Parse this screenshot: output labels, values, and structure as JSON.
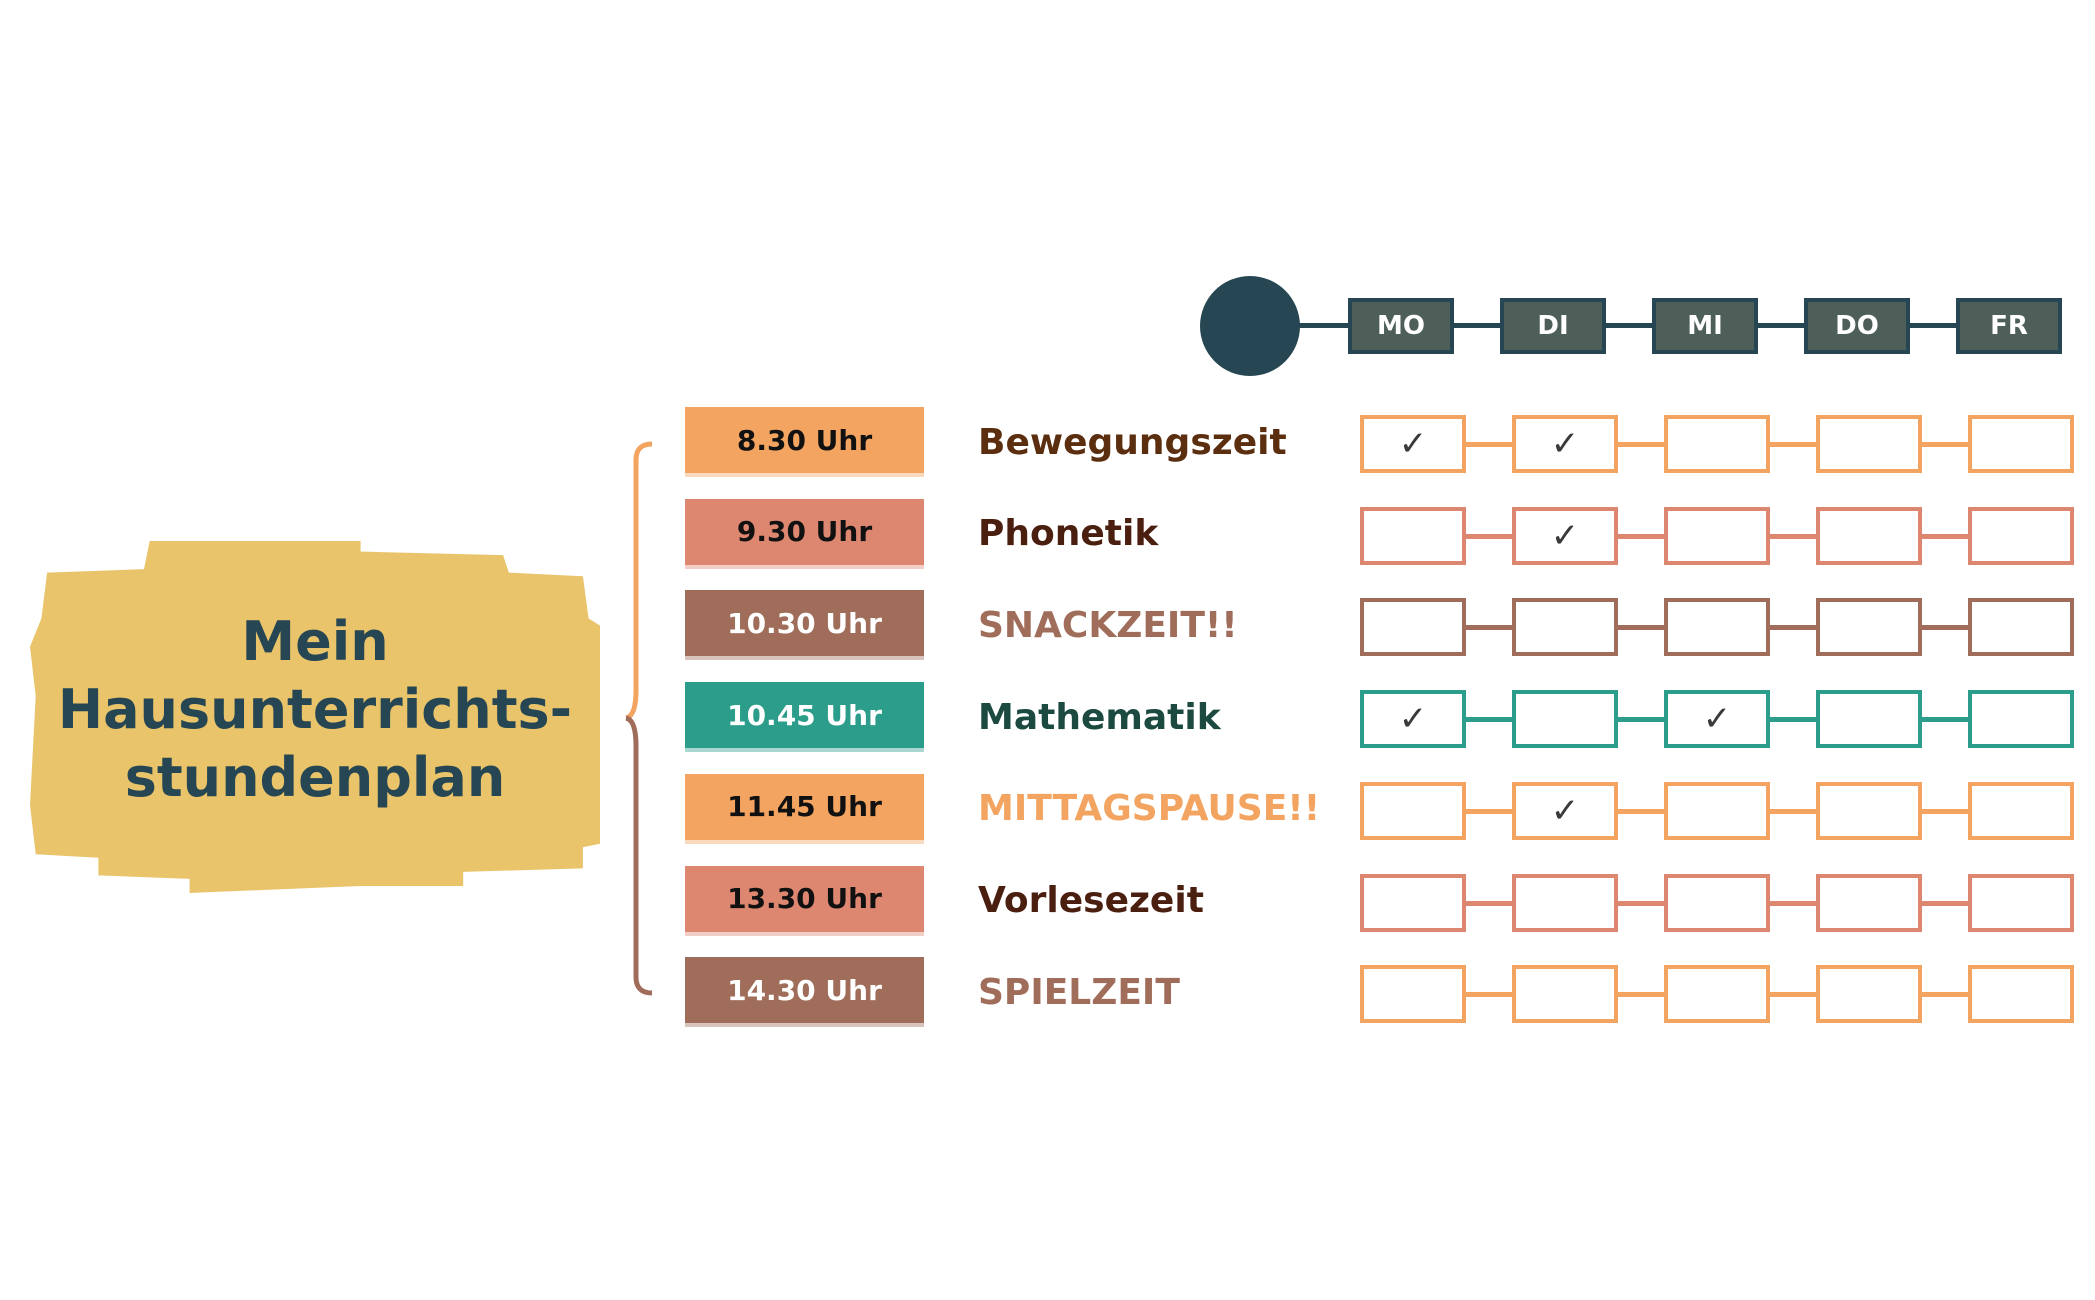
{
  "title": "Mein Hausunterrichts-stundenplan",
  "title_lines": [
    "Mein",
    "Hausunterrichts-",
    "stundenplan"
  ],
  "days": [
    "MO",
    "DI",
    "MI",
    "DO",
    "FR"
  ],
  "colors": {
    "orange": "#f2a460",
    "salmon": "#dd8670",
    "brown": "#a06d5a",
    "teal": "#2b9d8a",
    "navy": "#264653",
    "yellow": "#e9c46a"
  },
  "rows": [
    {
      "time": "8.30 Uhr",
      "subject": "Bewegungszeit",
      "box_color": "#f2a460",
      "time_text": "#111111",
      "subject_color": "#5a2e0e",
      "check_color": "#f2a460",
      "checks": [
        true,
        true,
        false,
        false,
        false
      ]
    },
    {
      "time": "9.30 Uhr",
      "subject": "Phonetik",
      "box_color": "#dd8670",
      "time_text": "#111111",
      "subject_color": "#4a1f10",
      "check_color": "#dd8670",
      "checks": [
        false,
        true,
        false,
        false,
        false
      ]
    },
    {
      "time": "10.30 Uhr",
      "subject": "SNACKZEIT!!",
      "box_color": "#a06d5a",
      "time_text": "#ffffff",
      "subject_color": "#a06d5a",
      "check_color": "#a06d5a",
      "checks": [
        false,
        false,
        false,
        false,
        false
      ]
    },
    {
      "time": "10.45 Uhr",
      "subject": "Mathematik",
      "box_color": "#2b9d8a",
      "time_text": "#ffffff",
      "subject_color": "#1d4a40",
      "check_color": "#2b9d8a",
      "checks": [
        true,
        false,
        true,
        false,
        false
      ]
    },
    {
      "time": "11.45 Uhr",
      "subject": "MITTAGSPAUSE!!",
      "box_color": "#f2a460",
      "time_text": "#111111",
      "subject_color": "#f2a460",
      "check_color": "#f2a460",
      "checks": [
        false,
        true,
        false,
        false,
        false
      ]
    },
    {
      "time": "13.30 Uhr",
      "subject": "Vorlesezeit",
      "box_color": "#dd8670",
      "time_text": "#111111",
      "subject_color": "#4a1f10",
      "check_color": "#dd8670",
      "checks": [
        false,
        false,
        false,
        false,
        false
      ]
    },
    {
      "time": "14.30 Uhr",
      "subject": "SPIELZEIT",
      "box_color": "#a06d5a",
      "time_text": "#ffffff",
      "subject_color": "#a06d5a",
      "check_color": "#f2a460",
      "checks": [
        false,
        false,
        false,
        false,
        false
      ]
    }
  ],
  "check_mark": "✓"
}
